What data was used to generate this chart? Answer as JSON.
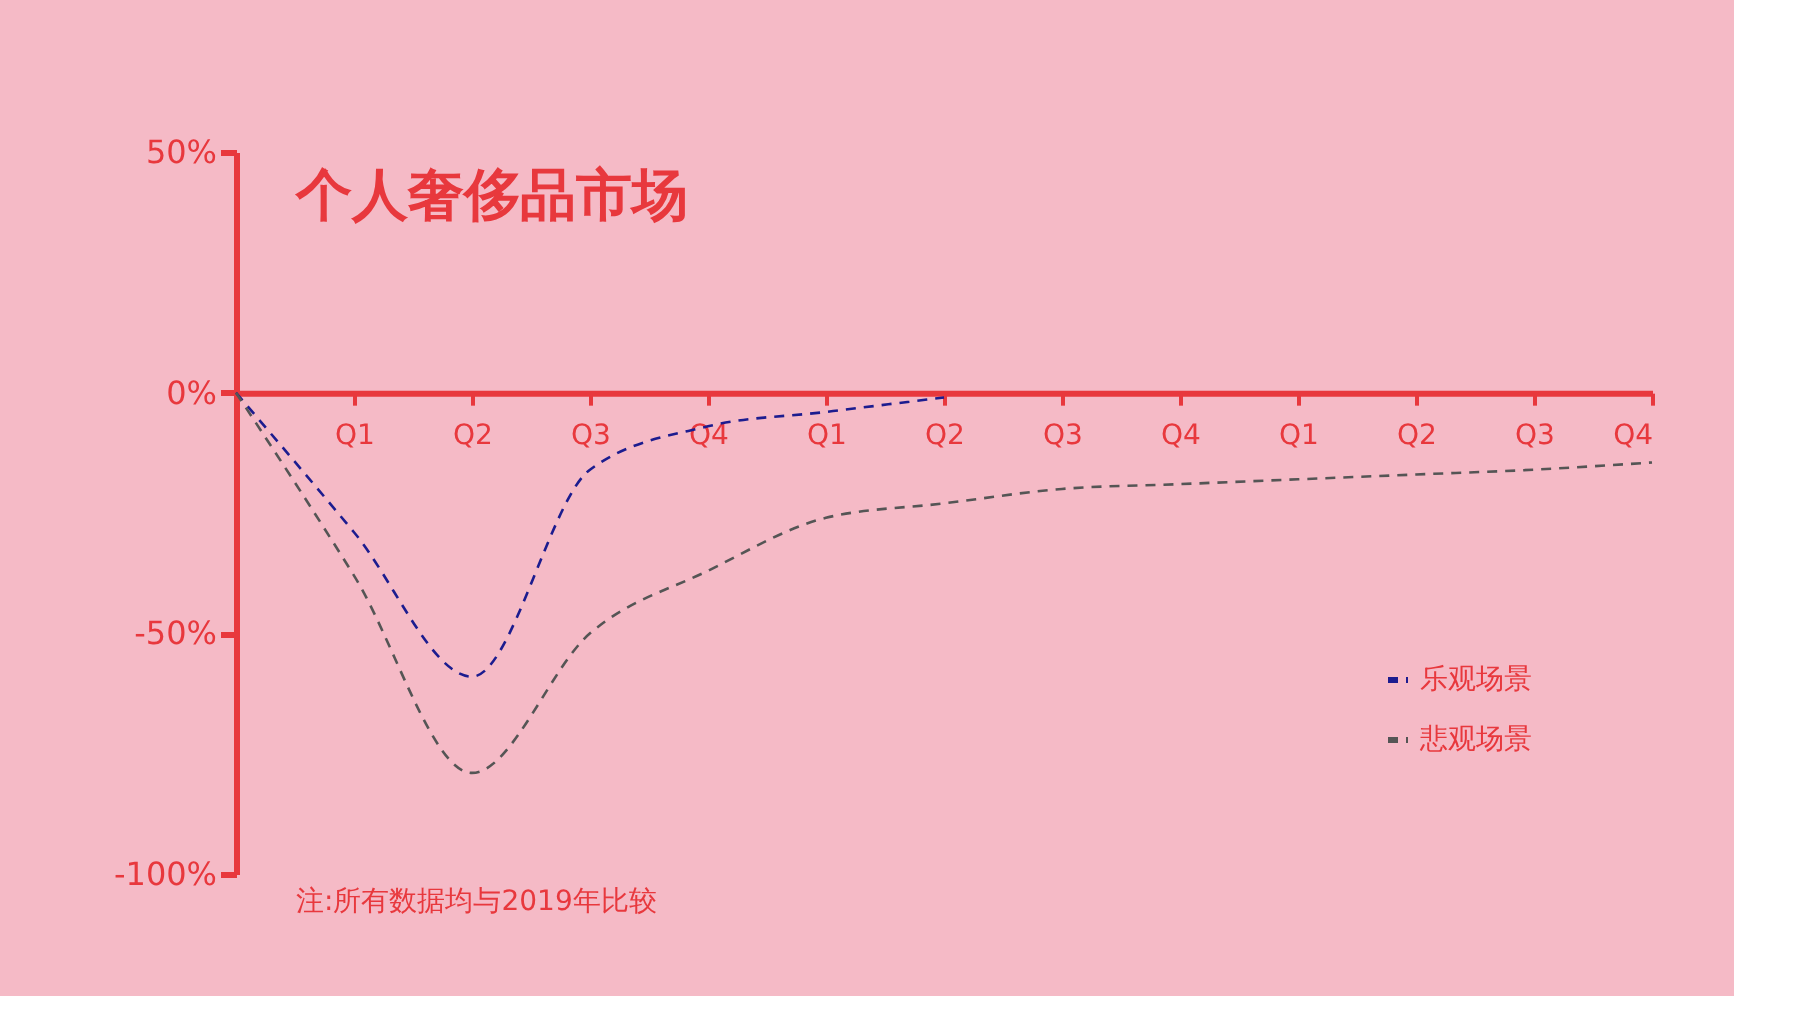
{
  "chart_data": {
    "type": "line",
    "title": "个人奢侈品市场",
    "annotations": [
      "注:所有数据均与2019年比较"
    ],
    "categories": [
      null,
      "Q1",
      "Q2",
      "Q3",
      "Q4",
      "Q1",
      "Q2",
      "Q3",
      "Q4",
      "Q1",
      "Q2",
      "Q3",
      "Q4"
    ],
    "ylim": [
      -100,
      50
    ],
    "yticks": [
      {
        "value": 50,
        "label": "50%"
      },
      {
        "value": 0,
        "label": "0%"
      },
      {
        "value": -50,
        "label": "-50%"
      },
      {
        "value": -100,
        "label": "-100%"
      }
    ],
    "line_style": "dashed",
    "marker": "none",
    "grid": false,
    "legend": "bottom right",
    "series": [
      {
        "name": "乐观场景",
        "color": "#1c1c8f",
        "values": [
          0,
          -29,
          -59,
          -16,
          -7,
          -4,
          -1,
          null,
          null,
          null,
          null,
          null,
          null
        ]
      },
      {
        "name": "悲观场景",
        "color": "#555555",
        "values": [
          0,
          -38,
          -79,
          -50,
          -37,
          -26,
          -23,
          -20,
          -19,
          -18,
          -17,
          -16,
          -14.5
        ]
      }
    ]
  }
}
